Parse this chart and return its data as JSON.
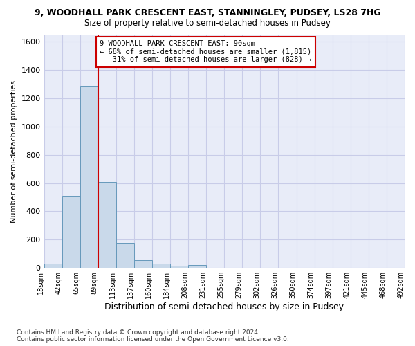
{
  "title_line1": "9, WOODHALL PARK CRESCENT EAST, STANNINGLEY, PUDSEY, LS28 7HG",
  "title_line2": "Size of property relative to semi-detached houses in Pudsey",
  "xlabel": "Distribution of semi-detached houses by size in Pudsey",
  "ylabel": "Number of semi-detached properties",
  "footnote": "Contains HM Land Registry data © Crown copyright and database right 2024.\nContains public sector information licensed under the Open Government Licence v3.0.",
  "bar_values": [
    30,
    510,
    1285,
    605,
    175,
    55,
    30,
    15,
    20,
    0,
    0,
    0,
    0,
    0,
    0,
    0,
    0,
    0,
    0,
    0
  ],
  "bin_labels": [
    "18sqm",
    "42sqm",
    "65sqm",
    "89sqm",
    "113sqm",
    "137sqm",
    "160sqm",
    "184sqm",
    "208sqm",
    "231sqm",
    "255sqm",
    "279sqm",
    "302sqm",
    "326sqm",
    "350sqm",
    "374sqm",
    "397sqm",
    "421sqm",
    "445sqm",
    "468sqm",
    "492sqm"
  ],
  "bar_color": "#c9d9ea",
  "bar_edge_color": "#6699bb",
  "grid_color": "#c8cce8",
  "background_color": "#e8ecf8",
  "ylim": [
    0,
    1650
  ],
  "yticks": [
    0,
    200,
    400,
    600,
    800,
    1000,
    1200,
    1400,
    1600
  ],
  "property_bin_index": 3,
  "annotation_text": "9 WOODHALL PARK CRESCENT EAST: 90sqm\n← 68% of semi-detached houses are smaller (1,815)\n   31% of semi-detached houses are larger (828) →",
  "red_line_color": "#cc0000",
  "annotation_box_color": "#ffffff",
  "annotation_box_edge": "#cc0000"
}
